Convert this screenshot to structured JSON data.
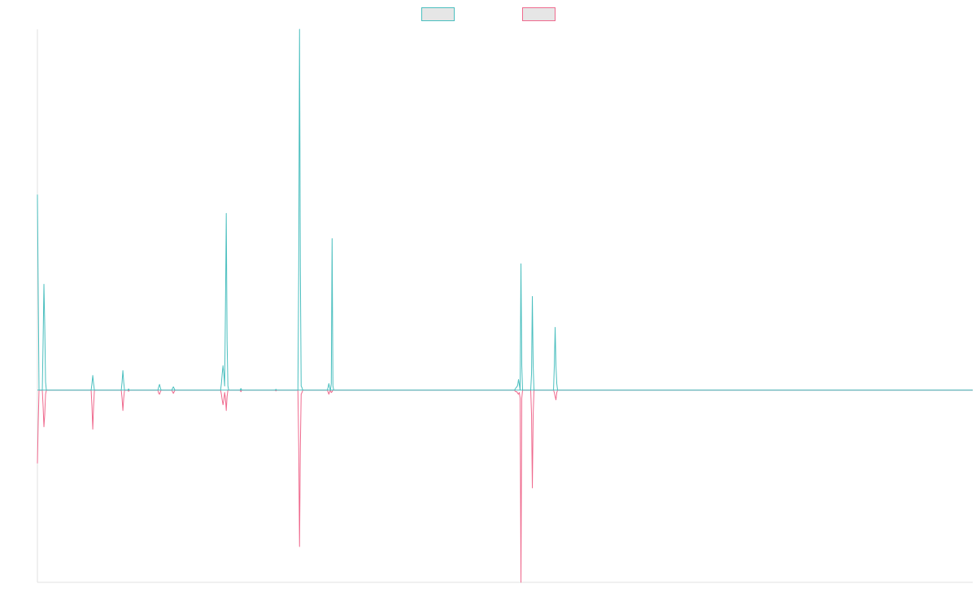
{
  "chart_data": {
    "type": "line",
    "title": "",
    "xlabel": "",
    "ylabel": "",
    "grid": false,
    "legend_position": "top-center",
    "xlim": [
      0,
      1149
    ],
    "ylim": [
      -236,
      443
    ],
    "baseline": 0,
    "series": [
      {
        "color": "#4bbfbf",
        "fill": "#e6e6e6",
        "sign": "positive",
        "x": [
          0,
          1,
          2,
          6,
          7,
          8,
          9,
          10,
          11,
          12,
          66,
          67,
          68,
          69,
          70,
          103,
          104,
          105,
          106,
          107,
          111,
          112,
          113,
          114,
          148,
          149,
          150,
          151,
          152,
          165,
          166,
          167,
          168,
          169,
          225,
          226,
          227,
          228,
          229,
          230,
          231,
          232,
          233,
          234,
          235,
          249,
          250,
          251,
          292,
          293,
          294,
          320,
          321,
          322,
          323,
          324,
          325,
          326,
          327,
          356,
          357,
          358,
          359,
          360,
          361,
          362,
          363,
          364,
          365,
          586,
          587,
          588,
          589,
          590,
          591,
          592,
          593,
          594,
          595,
          596,
          597,
          606,
          607,
          608,
          609,
          610,
          634,
          635,
          636,
          637,
          638,
          639,
          640,
          1149
        ],
        "y": [
          240,
          120,
          0,
          0,
          60,
          130,
          80,
          10,
          0,
          0,
          0,
          8,
          18,
          8,
          0,
          0,
          10,
          24,
          10,
          0,
          0,
          1.5,
          0,
          0,
          0,
          4,
          7,
          3,
          0,
          0,
          2,
          4,
          2,
          0,
          0,
          8,
          20,
          30,
          20,
          5,
          100,
          217,
          60,
          5,
          0,
          0,
          2,
          0,
          0,
          1,
          0,
          0,
          150,
          443,
          150,
          5,
          3,
          0,
          0,
          0,
          3,
          8,
          3,
          0,
          8,
          186,
          5,
          0,
          0,
          0,
          1.5,
          3,
          4,
          6,
          13,
          7,
          0,
          155,
          30,
          0,
          0,
          0,
          20,
          115,
          30,
          0,
          0,
          30,
          77,
          30,
          8,
          0,
          0,
          0
        ]
      },
      {
        "color": "#ef6a8e",
        "fill": "#e6e6e6",
        "sign": "negative",
        "x": [
          0,
          1,
          2,
          6,
          7,
          8,
          9,
          10,
          11,
          12,
          66,
          67,
          68,
          69,
          70,
          103,
          104,
          105,
          106,
          107,
          111,
          112,
          113,
          114,
          148,
          149,
          150,
          151,
          152,
          165,
          166,
          167,
          168,
          169,
          225,
          226,
          227,
          228,
          229,
          230,
          231,
          232,
          233,
          234,
          235,
          249,
          250,
          251,
          292,
          293,
          294,
          320,
          321,
          322,
          323,
          324,
          325,
          326,
          327,
          356,
          357,
          358,
          359,
          360,
          361,
          362,
          363,
          364,
          365,
          586,
          587,
          588,
          589,
          590,
          591,
          592,
          593,
          594,
          595,
          596,
          597,
          606,
          607,
          608,
          609,
          610,
          634,
          635,
          636,
          637,
          638,
          639,
          640,
          1149
        ],
        "y": [
          -90,
          -40,
          0,
          0,
          -20,
          -45,
          -30,
          -5,
          0,
          0,
          0,
          -20,
          -48,
          -20,
          0,
          0,
          -10,
          -25,
          -10,
          0,
          0,
          -1.5,
          0,
          0,
          0,
          -4,
          -5,
          -2,
          0,
          0,
          -2,
          -4,
          -2,
          0,
          0,
          -5,
          -12,
          -18,
          -12,
          -3,
          -10,
          -25,
          -8,
          0,
          0,
          0,
          -2,
          0,
          0,
          -1,
          0,
          0,
          -70,
          -192,
          -70,
          -5,
          -3,
          0,
          0,
          0,
          -2,
          -5,
          -2,
          0,
          -3,
          -2,
          0,
          0,
          0,
          0,
          -1.5,
          -2,
          -2,
          -4,
          -5,
          -3,
          -10,
          -236,
          -10,
          0,
          0,
          0,
          -30,
          -120,
          -30,
          0,
          0,
          -3,
          -8,
          -12,
          -3,
          0,
          0,
          0
        ]
      }
    ]
  }
}
